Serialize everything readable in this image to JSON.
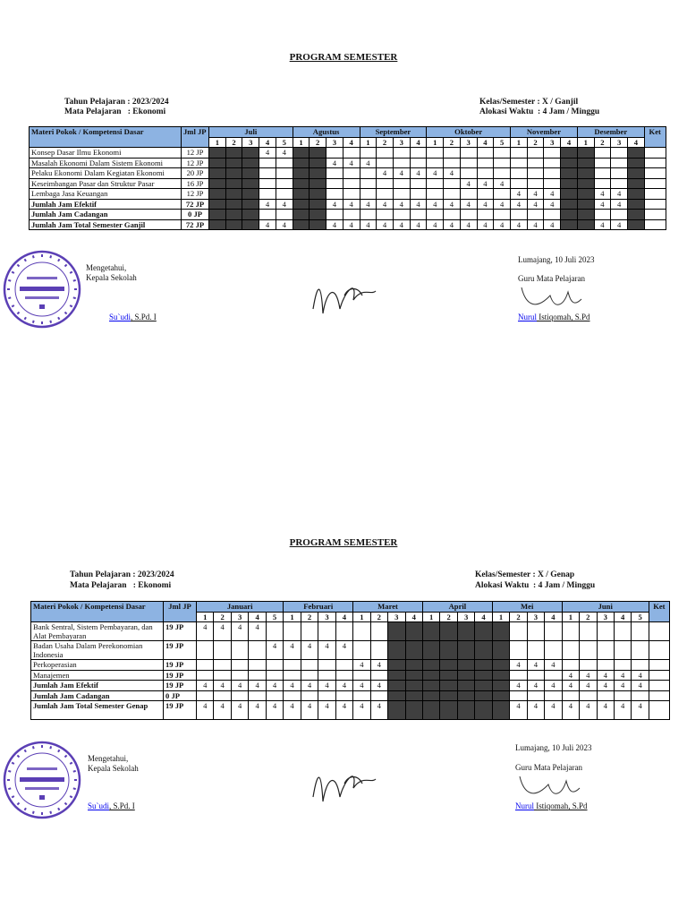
{
  "semesters": [
    {
      "title": "PROGRAM SEMESTER",
      "tahun_pelajaran": "Tahun Pelajaran : 2023/2024",
      "mata_pelajaran": "Mata Pelajaran   : Ekonomi",
      "kelas_semester": "Kelas/Semester : X / Ganjil",
      "alokasi_waktu": "Alokasi Waktu  : 4 Jam / Minggu",
      "header": {
        "materi": "Materi Pokok / Kompetensi Dasar",
        "jml": "Jml JP",
        "ket": "Ket"
      },
      "months": [
        {
          "name": "Juli",
          "weeks": 5
        },
        {
          "name": "Agustus",
          "weeks": 4
        },
        {
          "name": "September",
          "weeks": 4
        },
        {
          "name": "Oktober",
          "weeks": 5
        },
        {
          "name": "November",
          "weeks": 4
        },
        {
          "name": "Desember",
          "weeks": 4
        }
      ],
      "shaded_weeks": [
        0,
        1,
        2,
        5,
        6,
        21,
        22,
        25
      ],
      "rows": [
        {
          "label": "Konsep Dasar Ilmu Ekonomi",
          "jp": "12 JP",
          "summary": false,
          "cells": {
            "3": "4",
            "4": "4"
          }
        },
        {
          "label": "Masalah Ekonomi Dalam Sistem Ekonomi",
          "jp": "12 JP",
          "summary": false,
          "cells": {
            "7": "4",
            "8": "4",
            "9": "4"
          }
        },
        {
          "label": "Pelaku Ekonomi Dalam Kegiatan Ekonomi",
          "jp": "20 JP",
          "summary": false,
          "cells": {
            "10": "4",
            "11": "4",
            "12": "4",
            "13": "4",
            "14": "4"
          }
        },
        {
          "label": "Keseimbangan Pasar dan Struktur Pasar",
          "jp": "16 JP",
          "summary": false,
          "cells": {
            "15": "4",
            "16": "4",
            "17": "4"
          }
        },
        {
          "label": "Lembaga Jasa Keuangan",
          "jp": "12 JP",
          "summary": false,
          "cells": {
            "18": "4",
            "19": "4",
            "20": "4",
            "23": "4",
            "24": "4"
          }
        },
        {
          "label": "Jumlah Jam Efektif",
          "jp": "72 JP",
          "summary": true,
          "cells": {
            "3": "4",
            "4": "4",
            "7": "4",
            "8": "4",
            "9": "4",
            "10": "4",
            "11": "4",
            "12": "4",
            "13": "4",
            "14": "4",
            "15": "4",
            "16": "4",
            "17": "4",
            "18": "4",
            "19": "4",
            "20": "4",
            "23": "4",
            "24": "4"
          }
        },
        {
          "label": "Jumlah Jam Cadangan",
          "jp": "0 JP",
          "summary": true,
          "cells": {}
        },
        {
          "label": "Jumlah Jam Total Semester Ganjil",
          "jp": "72 JP",
          "summary": true,
          "cells": {
            "3": "4",
            "4": "4",
            "7": "4",
            "8": "4",
            "9": "4",
            "10": "4",
            "11": "4",
            "12": "4",
            "13": "4",
            "14": "4",
            "15": "4",
            "16": "4",
            "17": "4",
            "18": "4",
            "19": "4",
            "20": "4",
            "23": "4",
            "24": "4"
          }
        }
      ],
      "signature": {
        "left_line1": "Mengetahui,",
        "left_line2": "Kepala Sekolah",
        "left_name_link": "Su`udi",
        "left_name_rest": ", S.Pd. I",
        "place_date": "Lumajang, 10 Juli 2023",
        "right_line": "Guru Mata Pelajaran",
        "right_name_link": "Nurul",
        "right_name_rest": " Istiqomah, S.Pd"
      }
    },
    {
      "title": "PROGRAM SEMESTER",
      "tahun_pelajaran": "Tahun Pelajaran : 2023/2024",
      "mata_pelajaran": "Mata Pelajaran   : Ekonomi",
      "kelas_semester": "Kelas/Semester : X / Genap",
      "alokasi_waktu": "Alokasi Waktu  : 4 Jam / Minggu",
      "header": {
        "materi": "Materi Pokok / Kompetensi Dasar",
        "jml": "Jml JP",
        "ket": "Ket"
      },
      "months": [
        {
          "name": "Januari",
          "weeks": 5
        },
        {
          "name": "Februari",
          "weeks": 4
        },
        {
          "name": "Maret",
          "weeks": 4
        },
        {
          "name": "April",
          "weeks": 4
        },
        {
          "name": "Mei",
          "weeks": 4
        },
        {
          "name": "Juni",
          "weeks": 5
        }
      ],
      "shaded_weeks": [
        11,
        12,
        13,
        14,
        15,
        16,
        17
      ],
      "rows": [
        {
          "label": "Bank Sentral, Sistem Pembayaran, dan Alat Pembayaran",
          "jp": "19 JP",
          "summary": false,
          "cells": {
            "0": "4",
            "1": "4",
            "2": "4",
            "3": "4"
          }
        },
        {
          "label": "Badan Usaha Dalam Perekonomian Indonesia",
          "jp": "19 JP",
          "summary": false,
          "cells": {
            "4": "4",
            "5": "4",
            "6": "4",
            "7": "4",
            "8": "4"
          }
        },
        {
          "label": "Perkoperasian",
          "jp": "19 JP",
          "summary": false,
          "cells": {
            "9": "4",
            "10": "4",
            "18": "4",
            "19": "4",
            "20": "4"
          }
        },
        {
          "label": "Manajemen",
          "jp": "19 JP",
          "summary": false,
          "cells": {
            "21": "4",
            "22": "4",
            "23": "4",
            "24": "4",
            "25": "4"
          }
        },
        {
          "label": "Jumlah Jam Efektif",
          "jp": "19 JP",
          "summary": true,
          "cells": {
            "0": "4",
            "1": "4",
            "2": "4",
            "3": "4",
            "4": "4",
            "5": "4",
            "6": "4",
            "7": "4",
            "8": "4",
            "9": "4",
            "10": "4",
            "18": "4",
            "19": "4",
            "20": "4",
            "21": "4",
            "22": "4",
            "23": "4",
            "24": "4",
            "25": "4"
          }
        },
        {
          "label": "Jumlah Jam Cadangan",
          "jp": "0 JP",
          "summary": true,
          "cells": {}
        },
        {
          "label": "Jumlah Jam Total Semester Genap",
          "jp": "19 JP",
          "summary": true,
          "cells": {
            "0": "4",
            "1": "4",
            "2": "4",
            "3": "4",
            "4": "4",
            "5": "4",
            "6": "4",
            "7": "4",
            "8": "4",
            "9": "4",
            "10": "4",
            "18": "4",
            "19": "4",
            "20": "4",
            "21": "4",
            "22": "4",
            "23": "4",
            "24": "4",
            "25": "4"
          }
        }
      ],
      "signature": {
        "left_line1": "Mengetahui,",
        "left_line2": "Kepala Sekolah",
        "left_name_link": "Su`udi",
        "left_name_rest": ", S.Pd. I",
        "place_date": "Lumajang, 10 Juli 2023",
        "right_line": "Guru Mata Pelajaran",
        "right_name_link": "Nurul",
        "right_name_rest": " Istiqomah, S.Pd"
      }
    }
  ],
  "stamp": {
    "top": "MADRASAH ALIYAH NURUL",
    "nsm": "NSM : 131235080",
    "name": "\"MA NURUL AMIN\"",
    "accr": "TERAKREDITASI",
    "grade": "B",
    "bottom": "ROWOPOLO - JATIROTO - LUMAJANG"
  },
  "colors": {
    "header_bg": "#8db3e2",
    "shaded": "#3f3f3f",
    "stamp": "#5b3fb5",
    "link": "#0000ee"
  }
}
